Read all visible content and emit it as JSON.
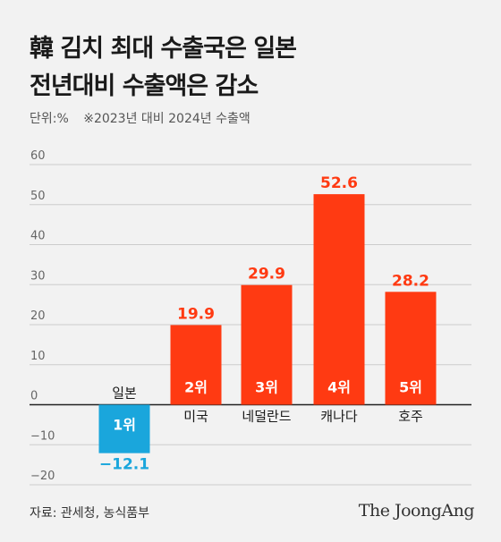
{
  "title_lines": [
    "韓 김치 최대 수출국은 일본",
    "전년대비 수출액은 감소"
  ],
  "unit_label": "단위:%",
  "note": "※2023년 대비 2024년 수출액",
  "source": "자료: 관세청, 농식품부",
  "logo": "The JoongAng",
  "colors": {
    "positive": "#ff3a12",
    "negative": "#1aa6dc",
    "grid": "#cccccc",
    "axis_text": "#666666",
    "background": "#f2f2f2"
  },
  "chart_data": {
    "type": "bar",
    "categories": [
      "일본",
      "미국",
      "네덜란드",
      "캐나다",
      "호주"
    ],
    "ranks": [
      "1위",
      "2위",
      "3위",
      "4위",
      "5위"
    ],
    "values": [
      -12.1,
      19.9,
      29.9,
      52.6,
      28.2
    ],
    "value_labels": [
      "−12.1",
      "19.9",
      "29.9",
      "52.6",
      "28.2"
    ],
    "yticks": [
      60,
      50,
      40,
      30,
      20,
      10,
      0,
      -10,
      -20
    ],
    "ytick_labels": [
      "60",
      "50",
      "40",
      "30",
      "20",
      "10",
      "0",
      "−10",
      "−20"
    ],
    "ylim": [
      -20,
      60
    ],
    "grid": true
  }
}
